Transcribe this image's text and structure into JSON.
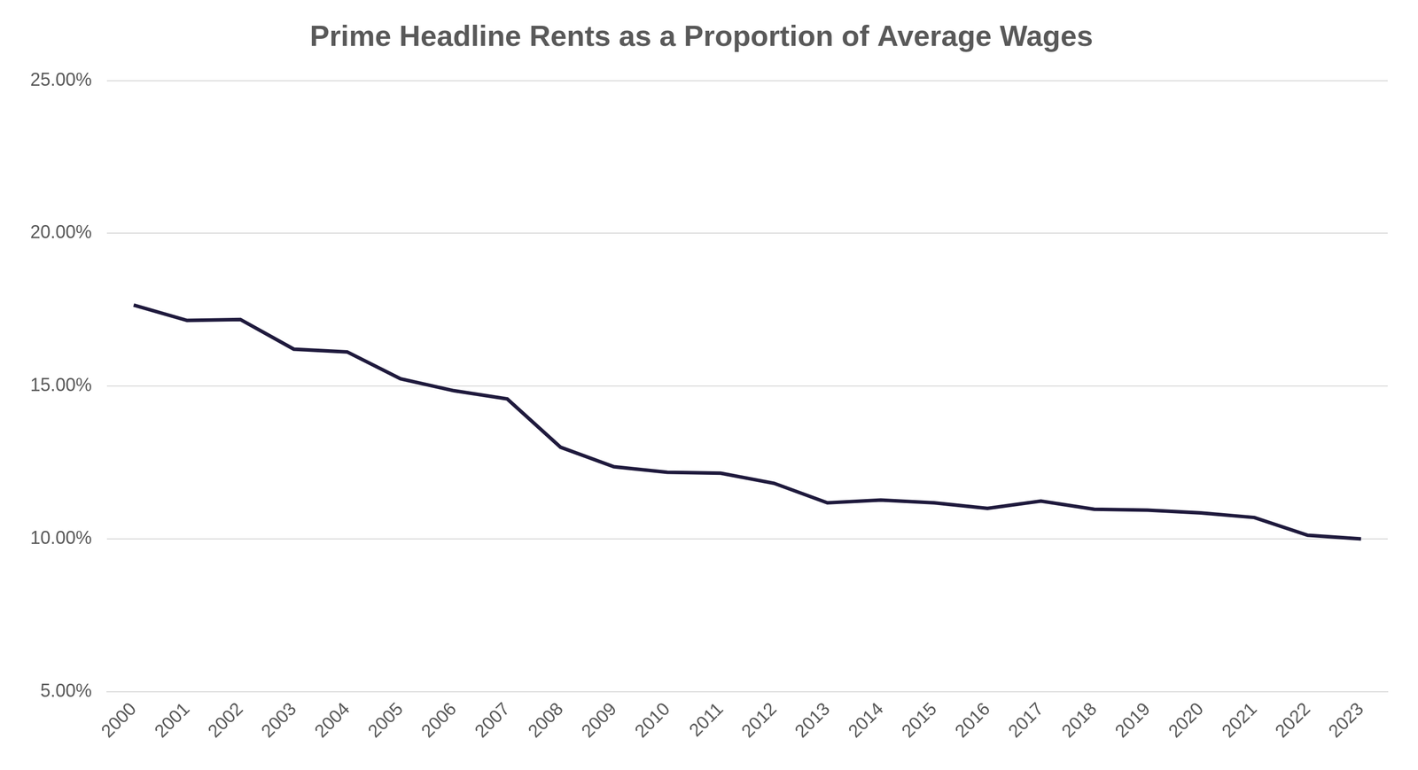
{
  "chart_data": {
    "type": "line",
    "title": "Prime Headline Rents as a Proportion of Average Wages",
    "categories": [
      "2000",
      "2001",
      "2002",
      "2003",
      "2004",
      "2005",
      "2006",
      "2007",
      "2008",
      "2009",
      "2010",
      "2011",
      "2012",
      "2013",
      "2014",
      "2015",
      "2016",
      "2017",
      "2018",
      "2019",
      "2020",
      "2021",
      "2022",
      "2023"
    ],
    "values": [
      17.65,
      17.15,
      17.18,
      16.21,
      16.12,
      15.24,
      14.85,
      14.58,
      13.0,
      12.36,
      12.18,
      12.15,
      11.82,
      11.18,
      11.27,
      11.18,
      11.0,
      11.24,
      10.97,
      10.94,
      10.85,
      10.7,
      10.12,
      10.0
    ],
    "color": "#1f1a3d",
    "marker": "none",
    "line_style": "solid",
    "ylim": [
      5,
      25
    ],
    "yticks": [
      {
        "value": 5,
        "label": "5.00%"
      },
      {
        "value": 10,
        "label": "10.00%"
      },
      {
        "value": 15,
        "label": "15.00%"
      },
      {
        "value": 20,
        "label": "20.00%"
      },
      {
        "value": 25,
        "label": "25.00%"
      }
    ],
    "grid": true
  }
}
